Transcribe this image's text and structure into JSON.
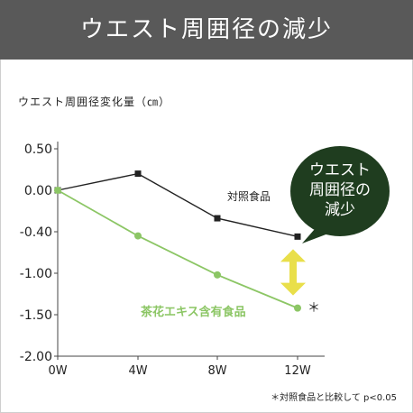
{
  "header": {
    "title": "ウエスト周囲径の減少"
  },
  "bubble": {
    "line1": "ウエスト",
    "line2": "周囲径の",
    "line3": "減少"
  },
  "footnote": "＊対照食品と比較して p<0.05",
  "colors": {
    "control": "#222222",
    "tea": "#8cc665",
    "header_bg": "#595959",
    "bubble": "#1f3d1f",
    "arrow": "#e9df4a"
  },
  "chart_data": {
    "type": "line",
    "ylabel": "ウエスト周囲径変化量（㎝）",
    "categories": [
      "0W",
      "4W",
      "8W",
      "12W"
    ],
    "yticks": [
      "0.50",
      "0.00",
      "-0.40",
      "-1.00",
      "-1.50",
      "-2.00"
    ],
    "ylim": [
      -2.0,
      0.5
    ],
    "grid": false,
    "series": [
      {
        "name": "対照食品",
        "values": [
          0.0,
          0.2,
          -0.27,
          -0.47
        ],
        "marker": "square",
        "color": "#222222"
      },
      {
        "name": "茶花エキス含有食品",
        "values": [
          0.0,
          -0.46,
          -1.02,
          -1.42
        ],
        "marker": "circle",
        "color": "#8cc665"
      }
    ],
    "annotation": "＊"
  }
}
